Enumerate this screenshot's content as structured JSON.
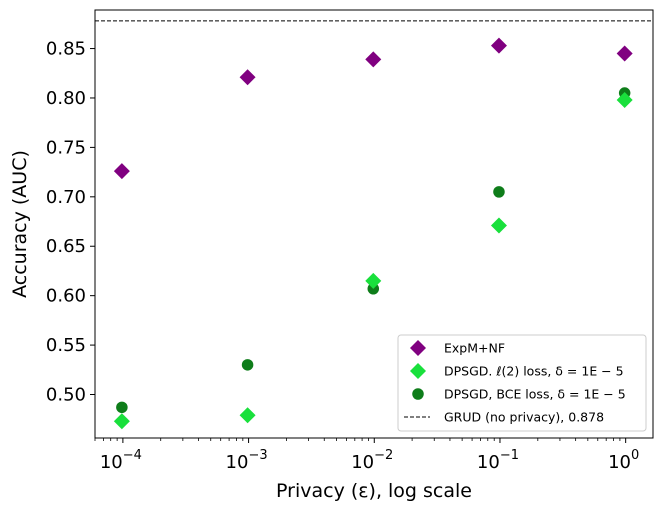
{
  "chart_data": {
    "type": "scatter",
    "title": "",
    "xlabel": "Privacy (ε), log scale",
    "ylabel": "Accuracy (AUC)",
    "xscale": "log",
    "xlim": [
      6e-05,
      1.65
    ],
    "ylim": [
      0.456,
      0.889
    ],
    "xticks": [
      {
        "value": 0.0001,
        "base": "10",
        "exp": "−4"
      },
      {
        "value": 0.001,
        "base": "10",
        "exp": "−3"
      },
      {
        "value": 0.01,
        "base": "10",
        "exp": "−2"
      },
      {
        "value": 0.1,
        "base": "10",
        "exp": "−1"
      },
      {
        "value": 1,
        "base": "10",
        "exp": "0"
      }
    ],
    "yticks": [
      "0.50",
      "0.55",
      "0.60",
      "0.65",
      "0.70",
      "0.75",
      "0.80",
      "0.85"
    ],
    "series": [
      {
        "name": "ExpM+NF",
        "color": "#800080",
        "marker": "diamond",
        "x": [
          0.0001,
          0.001,
          0.01,
          0.1,
          1
        ],
        "y": [
          0.726,
          0.821,
          0.839,
          0.853,
          0.845
        ]
      },
      {
        "name": "DPSGD, BCE loss, δ = 1E − 5",
        "color": "#0e7d1a",
        "marker": "circle",
        "x": [
          0.0001,
          0.001,
          0.01,
          0.1,
          1
        ],
        "y": [
          0.487,
          0.53,
          0.607,
          0.705,
          0.805
        ]
      },
      {
        "name": "DPSGD. ℓ(2) loss, δ = 1E − 5",
        "color": "#19e03c",
        "marker": "diamond",
        "x": [
          0.0001,
          0.001,
          0.01,
          0.1,
          1
        ],
        "y": [
          0.473,
          0.479,
          0.615,
          0.671,
          0.798
        ]
      }
    ],
    "reference_line": {
      "name": "GRUD (no privacy), 0.878",
      "value": 0.878,
      "color": "#000000",
      "style": "dashed"
    },
    "legend": {
      "position": "lower-right",
      "entries": [
        {
          "label": "ExpM+NF",
          "color": "#800080",
          "marker": "diamond"
        },
        {
          "label": "DPSGD. ℓ(2) loss, δ = 1E − 5",
          "color": "#19e03c",
          "marker": "diamond"
        },
        {
          "label": "DPSGD, BCE loss, δ = 1E − 5",
          "color": "#0e7d1a",
          "marker": "circle"
        },
        {
          "label": "GRUD (no privacy), 0.878",
          "color": "#000000",
          "marker": "dashed-line"
        }
      ]
    }
  }
}
